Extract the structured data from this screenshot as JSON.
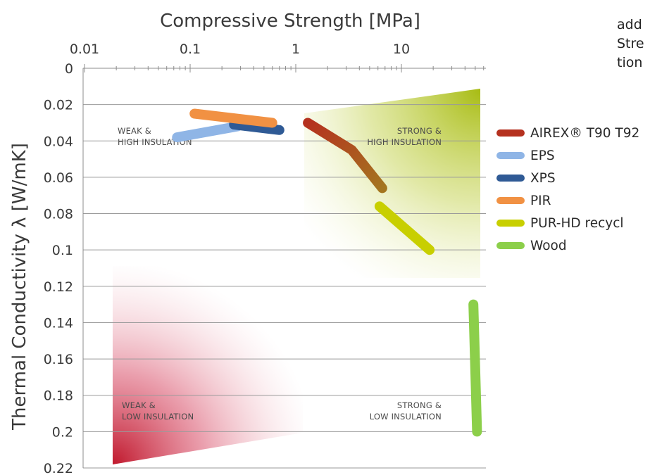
{
  "side_text": [
    "add",
    "Stre",
    "tion"
  ],
  "colors": {
    "axis": "#8c8c8c",
    "grid": "#9a9a9a",
    "text": "#3a3a3a",
    "weak_low_zone": "#c0182c",
    "strong_high_zone": "#a8bc14"
  },
  "chart_data": {
    "type": "line",
    "title": "",
    "xlabel": "Compressive Strength [MPa]",
    "ylabel": "Thermal Conductivity λ [W/mK]",
    "x_scale": "log",
    "x_axis_position": "top",
    "y_inverted": true,
    "xlim": [
      0.01,
      60
    ],
    "ylim": [
      0,
      0.22
    ],
    "x_ticks": [
      0.01,
      0.1,
      1,
      10
    ],
    "x_tick_labels": [
      "0.01",
      "0.1",
      "1",
      "10"
    ],
    "y_ticks": [
      0,
      0.02,
      0.04,
      0.06,
      0.08,
      0.1,
      0.12,
      0.14,
      0.16,
      0.18,
      0.2,
      0.22
    ],
    "y_tick_labels": [
      "0",
      "0.02",
      "0.04",
      "0.06",
      "0.08",
      "0.1",
      "0.12",
      "0.14",
      "0.16",
      "0.18",
      "0.2",
      "0.22"
    ],
    "grid": "horizontal",
    "legend_position": "right",
    "series": [
      {
        "name": "AIREX® T90 T92",
        "color": "#b5311f",
        "gradient_to": "#a4751f",
        "x": [
          1.3,
          3.4,
          6.6
        ],
        "y": [
          0.03,
          0.045,
          0.066
        ]
      },
      {
        "name": "EPS",
        "color": "#8fb5e6",
        "x": [
          0.075,
          0.28
        ],
        "y": [
          0.038,
          0.032
        ]
      },
      {
        "name": "XPS",
        "color": "#2f5a95",
        "x": [
          0.26,
          0.7
        ],
        "y": [
          0.031,
          0.034
        ]
      },
      {
        "name": "PIR",
        "color": "#f19143",
        "x": [
          0.11,
          0.6
        ],
        "y": [
          0.025,
          0.03
        ]
      },
      {
        "name": "PUR-HD recycl",
        "color": "#c8cf00",
        "x": [
          6.2,
          18.5
        ],
        "y": [
          0.076,
          0.1
        ]
      },
      {
        "name": "Wood",
        "color": "#8ccf4a",
        "x": [
          48,
          52
        ],
        "y": [
          0.13,
          0.2
        ]
      }
    ],
    "regions": [
      {
        "label": [
          "WEAK &",
          "HIGH INSULATION"
        ],
        "zone": "top-left"
      },
      {
        "label": [
          "STRONG &",
          "HIGH INSULATION"
        ],
        "zone": "top-right"
      },
      {
        "label": [
          "WEAK &",
          "LOW INSULATION"
        ],
        "zone": "bottom-left"
      },
      {
        "label": [
          "STRONG &",
          "LOW INSULATION"
        ],
        "zone": "bottom-right"
      }
    ]
  }
}
